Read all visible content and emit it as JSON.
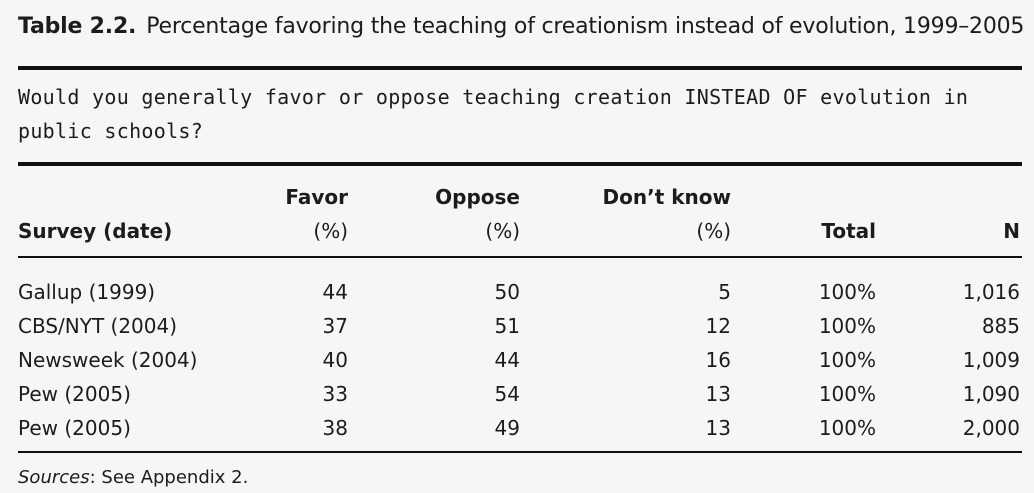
{
  "title": {
    "label": "Table 2.2.",
    "text": "Percentage favoring the teaching of creationism instead of evolution, 1999–2005"
  },
  "question": "Would you generally favor or oppose teaching creation INSTEAD OF evolution in public schools?",
  "table": {
    "headers": {
      "survey": "Survey (date)",
      "favor_top": "Favor",
      "favor_bottom": "(%)",
      "oppose_top": "Oppose",
      "oppose_bottom": "(%)",
      "dontknow_top": "Don’t know",
      "dontknow_bottom": "(%)",
      "total": "Total",
      "n": "N"
    },
    "rows": [
      [
        "Gallup (1999)",
        "44",
        "50",
        "5",
        "100%",
        "1,016"
      ],
      [
        "CBS/NYT (2004)",
        "37",
        "51",
        "12",
        "100%",
        "885"
      ],
      [
        "Newsweek (2004)",
        "40",
        "44",
        "16",
        "100%",
        "1,009"
      ],
      [
        "Pew (2005)",
        "33",
        "54",
        "13",
        "100%",
        "1,090"
      ],
      [
        "Pew (2005)",
        "38",
        "49",
        "13",
        "100%",
        "2,000"
      ]
    ]
  },
  "sources": {
    "label": "Sources",
    "text": ": See Appendix 2."
  }
}
